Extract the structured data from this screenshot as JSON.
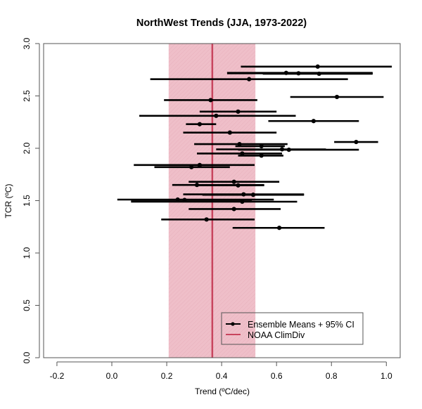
{
  "chart_data": {
    "type": "scatter",
    "title": "NorthWest Trends (JJA, 1973-2022)",
    "xlabel": "Trend (ºC/dec)",
    "ylabel": "TCR (ºC)",
    "xlim": [
      -0.25,
      1.05
    ],
    "ylim": [
      0.0,
      3.0
    ],
    "xticks": [
      -0.2,
      0.0,
      0.2,
      0.4,
      0.6,
      0.8,
      1.0
    ],
    "xtick_labels": [
      "-0.2",
      "0.0",
      "0.2",
      "0.4",
      "0.6",
      "0.8",
      "1.0"
    ],
    "yticks": [
      0.0,
      0.5,
      1.0,
      1.5,
      2.0,
      2.5,
      3.0
    ],
    "ytick_labels": [
      "0.0",
      "0.5",
      "1.0",
      "1.5",
      "2.0",
      "2.5",
      "3.0"
    ],
    "grid": false,
    "legend": {
      "position": "bottom-right",
      "entries": [
        {
          "label": "Ensemble Means + 95% CI",
          "type": "point-range",
          "color": "#000000"
        },
        {
          "label": "NOAA ClimDiv",
          "type": "line",
          "color": "#c8455e"
        }
      ]
    },
    "reference": {
      "name": "NOAA ClimDiv",
      "trend": 0.366,
      "ci_low": 0.207,
      "ci_high": 0.523,
      "line_color": "#c8455e",
      "band_color": "#eebcc6"
    },
    "series": [
      {
        "name": "Ensemble Means + 95% CI",
        "color": "#000000",
        "points": [
          {
            "tcr": 2.78,
            "members": [
              {
                "mean": 0.75,
                "low": 0.47,
                "high": 1.02
              }
            ]
          },
          {
            "tcr": 2.72,
            "members": [
              {
                "mean": 0.635,
                "low": 0.42,
                "high": 0.95
              },
              {
                "mean": 0.68,
                "low": 0.42,
                "high": 0.95
              },
              {
                "mean": 0.755,
                "low": 0.55,
                "high": 0.95
              }
            ]
          },
          {
            "tcr": 2.66,
            "members": [
              {
                "mean": 0.5,
                "low": 0.14,
                "high": 0.86
              }
            ]
          },
          {
            "tcr": 2.49,
            "members": [
              {
                "mean": 0.82,
                "low": 0.65,
                "high": 0.99
              }
            ]
          },
          {
            "tcr": 2.46,
            "members": [
              {
                "mean": 0.36,
                "low": 0.19,
                "high": 0.53
              }
            ]
          },
          {
            "tcr": 2.35,
            "members": [
              {
                "mean": 0.46,
                "low": 0.32,
                "high": 0.6
              }
            ]
          },
          {
            "tcr": 2.31,
            "members": [
              {
                "mean": 0.38,
                "low": 0.1,
                "high": 0.67
              }
            ]
          },
          {
            "tcr": 2.26,
            "members": [
              {
                "mean": 0.735,
                "low": 0.57,
                "high": 0.9
              }
            ]
          },
          {
            "tcr": 2.23,
            "members": [
              {
                "mean": 0.32,
                "low": 0.27,
                "high": 0.38
              }
            ]
          },
          {
            "tcr": 2.15,
            "members": [
              {
                "mean": 0.43,
                "low": 0.26,
                "high": 0.6
              }
            ]
          },
          {
            "tcr": 2.06,
            "members": [
              {
                "mean": 0.89,
                "low": 0.81,
                "high": 0.97
              }
            ]
          },
          {
            "tcr": 2.04,
            "members": [
              {
                "mean": 0.465,
                "low": 0.3,
                "high": 0.64
              }
            ]
          },
          {
            "tcr": 2.02,
            "members": [
              {
                "mean": 0.545,
                "low": 0.45,
                "high": 0.63
              }
            ]
          },
          {
            "tcr": 1.99,
            "members": [
              {
                "mean": 0.62,
                "low": 0.38,
                "high": 0.78
              },
              {
                "mean": 0.645,
                "low": 0.46,
                "high": 0.9
              }
            ]
          },
          {
            "tcr": 1.95,
            "members": [
              {
                "mean": 0.475,
                "low": 0.31,
                "high": 0.62
              }
            ]
          },
          {
            "tcr": 1.93,
            "members": [
              {
                "mean": 0.545,
                "low": 0.46,
                "high": 0.625
              }
            ]
          },
          {
            "tcr": 1.84,
            "members": [
              {
                "mean": 0.32,
                "low": 0.08,
                "high": 0.52
              }
            ]
          },
          {
            "tcr": 1.82,
            "members": [
              {
                "mean": 0.29,
                "low": 0.155,
                "high": 0.43
              }
            ]
          },
          {
            "tcr": 1.68,
            "members": [
              {
                "mean": 0.445,
                "low": 0.28,
                "high": 0.61
              }
            ]
          },
          {
            "tcr": 1.65,
            "members": [
              {
                "mean": 0.31,
                "low": 0.22,
                "high": 0.555
              },
              {
                "mean": 0.46,
                "low": 0.31,
                "high": 0.555
              }
            ]
          },
          {
            "tcr": 1.56,
            "members": [
              {
                "mean": 0.48,
                "low": 0.26,
                "high": 0.7
              },
              {
                "mean": 0.515,
                "low": 0.33,
                "high": 0.7
              }
            ]
          },
          {
            "tcr": 1.51,
            "members": [
              {
                "mean": 0.24,
                "low": 0.02,
                "high": 0.59
              },
              {
                "mean": 0.265,
                "low": 0.07,
                "high": 0.51
              }
            ]
          },
          {
            "tcr": 1.49,
            "members": [
              {
                "mean": 0.475,
                "low": 0.07,
                "high": 0.675
              }
            ]
          },
          {
            "tcr": 1.42,
            "members": [
              {
                "mean": 0.445,
                "low": 0.28,
                "high": 0.615
              }
            ]
          },
          {
            "tcr": 1.32,
            "members": [
              {
                "mean": 0.345,
                "low": 0.18,
                "high": 0.52
              }
            ]
          },
          {
            "tcr": 1.24,
            "members": [
              {
                "mean": 0.61,
                "low": 0.44,
                "high": 0.775
              }
            ]
          }
        ]
      }
    ]
  }
}
